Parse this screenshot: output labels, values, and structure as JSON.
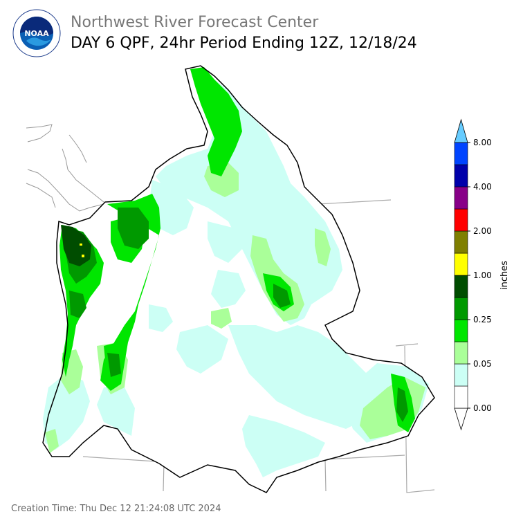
{
  "header": {
    "agency": "Northwest River Forecast Center",
    "product": "DAY 6 QPF, 24hr Period Ending 12Z, 12/18/24",
    "logo_text": "NOAA"
  },
  "footer": {
    "creation_time": "Creation Time: Thu Dec 12 21:24:08 UTC 2024"
  },
  "legend": {
    "unit": "inches",
    "bins": [
      {
        "color": "#ffffff",
        "label": "0.00"
      },
      {
        "color": "#ccfff5",
        "label": ""
      },
      {
        "color": "#aaff99",
        "label": "0.05"
      },
      {
        "color": "#00e600",
        "label": ""
      },
      {
        "color": "#009900",
        "label": "0.25"
      },
      {
        "color": "#004d00",
        "label": ""
      },
      {
        "color": "#ffff00",
        "label": "1.00"
      },
      {
        "color": "#7f7f00",
        "label": ""
      },
      {
        "color": "#ff0000",
        "label": "2.00"
      },
      {
        "color": "#880088",
        "label": ""
      },
      {
        "color": "#0000aa",
        "label": "4.00"
      },
      {
        "color": "#0044ff",
        "label": ""
      },
      {
        "color": "#66ccff",
        "label": "8.00"
      }
    ]
  },
  "colors": {
    "basin_outline": "#000000",
    "state_lines": "#aaaaaa",
    "coastline": "#999999"
  }
}
